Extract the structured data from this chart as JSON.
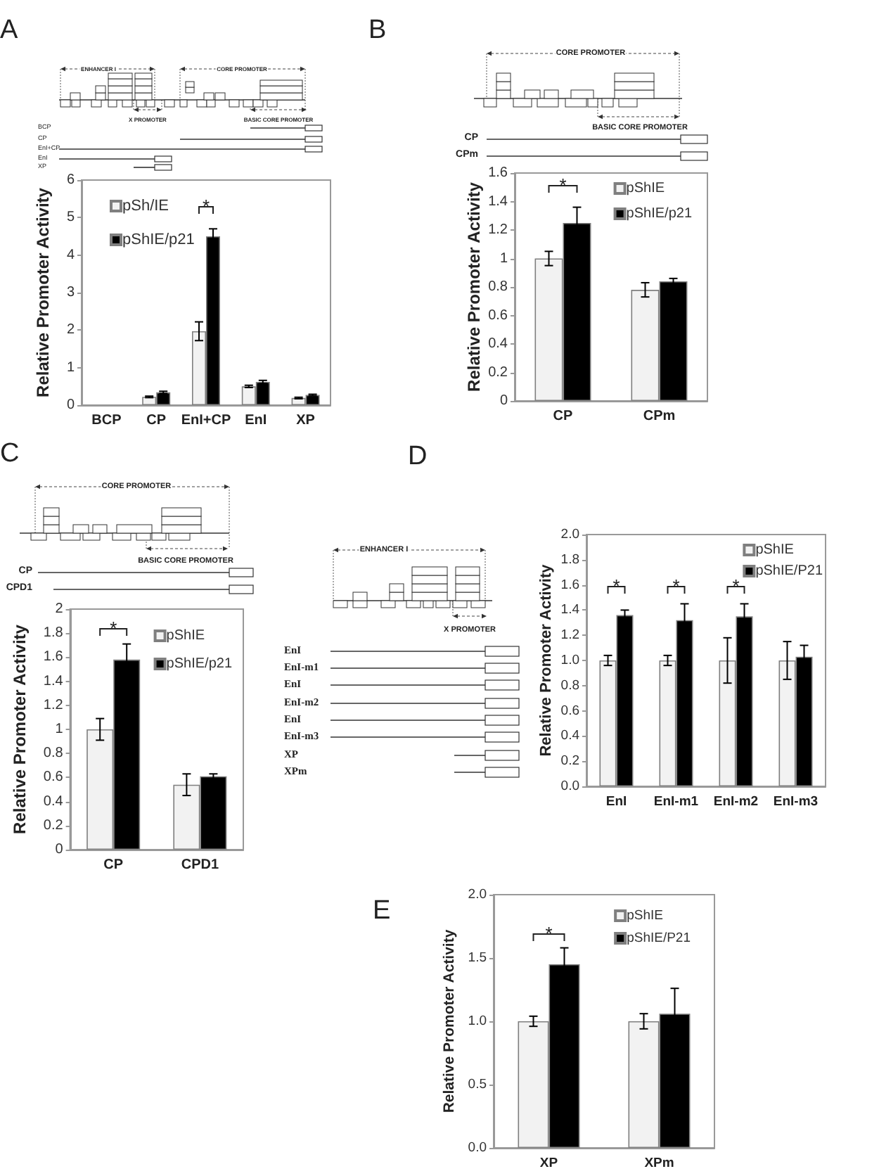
{
  "chart_data": [
    {
      "type": "bar",
      "title": "A",
      "categories": [
        "BCP",
        "CP",
        "EnI+CP",
        "EnI",
        "XP"
      ],
      "series": [
        {
          "name": "pSh/IE",
          "color": "#f2f2f2",
          "values": [
            null,
            0.22,
            1.97,
            0.5,
            0.19
          ],
          "errors": [
            null,
            0.02,
            0.25,
            0.03,
            0.02
          ]
        },
        {
          "name": "pShIE/p21",
          "color": "#000000",
          "values": [
            null,
            0.34,
            4.5,
            0.62,
            0.27
          ],
          "errors": [
            null,
            0.03,
            0.2,
            0.04,
            0.02
          ]
        }
      ],
      "ylabel": "Relative Promoter Activity",
      "ylim": [
        0,
        6
      ],
      "yticks": [
        0,
        1,
        2,
        3,
        4,
        5,
        6
      ],
      "grid": false,
      "legend": "top left",
      "annotations": [
        "*",
        "ENHANCER I",
        "CORE PROMOTER",
        "X PROMOTER",
        "BASIC CORE PROMOTER",
        "BCP",
        "CP",
        "EnI+CP",
        "EnI",
        "XP"
      ]
    },
    {
      "type": "bar",
      "title": "B",
      "categories": [
        "CP",
        "CPm"
      ],
      "series": [
        {
          "name": "pShIE",
          "color": "#f2f2f2",
          "values": [
            1.0,
            0.78
          ],
          "errors": [
            0.05,
            0.05
          ]
        },
        {
          "name": "pShIE/p21",
          "color": "#000000",
          "values": [
            1.25,
            0.84
          ],
          "errors": [
            0.11,
            0.02
          ]
        }
      ],
      "ylabel": "Relative Promoter Activity",
      "ylim": [
        0,
        1.6
      ],
      "yticks": [
        0,
        0.2,
        0.4,
        0.6,
        0.8,
        1,
        1.2,
        1.4,
        1.6
      ],
      "grid": false,
      "legend": "top right",
      "annotations": [
        "*",
        "CORE PROMOTER",
        "BASIC CORE PROMOTER",
        "CP",
        "CPm"
      ]
    },
    {
      "type": "bar",
      "title": "C",
      "categories": [
        "CP",
        "CPD1"
      ],
      "series": [
        {
          "name": "pShIE",
          "color": "#f2f2f2",
          "values": [
            1.0,
            0.54
          ],
          "errors": [
            0.09,
            0.09
          ]
        },
        {
          "name": "pShIE/p21",
          "color": "#000000",
          "values": [
            1.58,
            0.61
          ],
          "errors": [
            0.13,
            0.02
          ]
        }
      ],
      "ylabel": "Relative Promoter Activity",
      "ylim": [
        0,
        2
      ],
      "yticks": [
        0,
        0.2,
        0.4,
        0.6,
        0.8,
        1,
        1.2,
        1.4,
        1.6,
        1.8,
        2
      ],
      "grid": false,
      "legend": "top right",
      "annotations": [
        "*",
        "CORE PROMOTER",
        "BASIC CORE PROMOTER",
        "CP",
        "CPD1"
      ]
    },
    {
      "type": "bar",
      "title": "D",
      "categories": [
        "EnI",
        "EnI-m1",
        "EnI-m2",
        "EnI-m3"
      ],
      "series": [
        {
          "name": "pShIE",
          "color": "#f2f2f2",
          "values": [
            1.0,
            1.0,
            1.0,
            1.0
          ],
          "errors": [
            0.04,
            0.04,
            0.18,
            0.15
          ]
        },
        {
          "name": "pShIE/P21",
          "color": "#000000",
          "values": [
            1.36,
            1.32,
            1.35,
            1.03
          ],
          "errors": [
            0.04,
            0.13,
            0.1,
            0.09
          ]
        }
      ],
      "ylabel": "Relative Promoter Activity",
      "ylim": [
        0,
        2
      ],
      "yticks": [
        {
          "value": 0,
          "label": "0.0"
        },
        0.2,
        0.4,
        0.6,
        0.8,
        {
          "value": 1,
          "label": "1.0"
        },
        1.2,
        1.4,
        1.6,
        1.8,
        {
          "value": 2,
          "label": "2.0"
        }
      ],
      "grid": false,
      "legend": "top right",
      "annotations": [
        "*",
        "*",
        "*",
        "ENHANCER I",
        "X PROMOTER",
        "EnI",
        "EnI-m1",
        "EnI",
        "EnI-m2",
        "EnI",
        "EnI-m3",
        "XP",
        "XPm"
      ]
    },
    {
      "type": "bar",
      "title": "E",
      "categories": [
        "XP",
        "XPm"
      ],
      "series": [
        {
          "name": "pShIE",
          "color": "#f2f2f2",
          "values": [
            1.0,
            1.0
          ],
          "errors": [
            0.04,
            0.06
          ]
        },
        {
          "name": "pShIE/P21",
          "color": "#000000",
          "values": [
            1.45,
            1.06
          ],
          "errors": [
            0.13,
            0.2
          ]
        }
      ],
      "ylabel": "Relative Promoter Activity",
      "ylim": [
        0,
        2
      ],
      "yticks": [
        {
          "value": 0,
          "label": "0.0"
        },
        0.5,
        {
          "value": 1,
          "label": "1.0"
        },
        1.5,
        {
          "value": 2,
          "label": "2.0"
        }
      ],
      "grid": false,
      "legend": "top right",
      "annotations": [
        "*"
      ]
    }
  ]
}
